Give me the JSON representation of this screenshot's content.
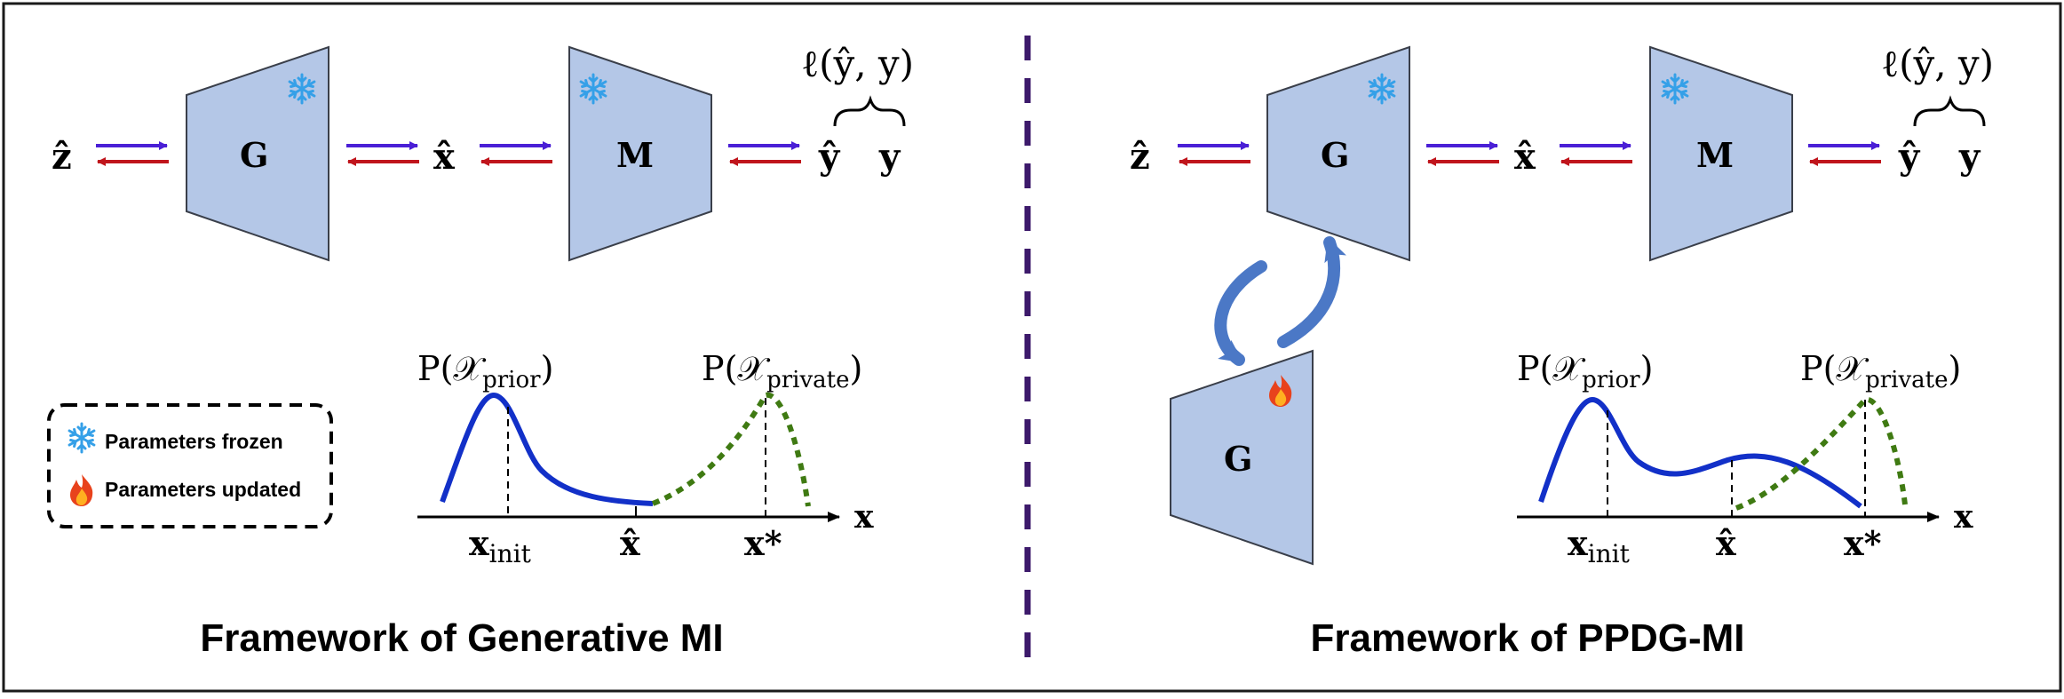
{
  "colors": {
    "block_fill": "#b4c7e7",
    "block_stroke": "#3a3f4a",
    "forward_arrow": "#4a1fd6",
    "backward_arrow": "#c0151c",
    "divider": "#3d1a6b",
    "prior_curve": "#1230c8",
    "private_curve": "#3f7a12",
    "cycle_arrow": "#4b78c6",
    "snowflake": "#35a0e8",
    "fire": "#e8421c"
  },
  "left_panel": {
    "caption": "Framework of Generative MI",
    "pipeline": {
      "z_label": "ẑ",
      "generator_label": "G",
      "x_label": "x̂",
      "model_label": "M",
      "y_hat_label": "ŷ",
      "y_label": "y",
      "loss_label": "ℓ(ŷ, y)"
    },
    "legend": {
      "frozen_icon": "snowflake-icon",
      "frozen_label": "Parameters frozen",
      "updated_icon": "fire-icon",
      "updated_label": "Parameters updated"
    },
    "plot": {
      "prior_label": "P(𝒳",
      "prior_sub": "prior",
      "private_label": "P(𝒳",
      "private_sub": "private",
      "axis_label": "x",
      "x_init": "x",
      "x_init_sub": "init",
      "x_hat": "x̂",
      "x_star": "x*"
    }
  },
  "right_panel": {
    "caption": "Framework of PPDG-MI",
    "pipeline": {
      "z_label": "ẑ",
      "generator_label": "G",
      "x_label": "x̂",
      "model_label": "M",
      "y_hat_label": "ŷ",
      "y_label": "y",
      "loss_label": "ℓ(ŷ, y)"
    },
    "updated_generator_label": "G",
    "plot": {
      "prior_label": "P(𝒳",
      "prior_sub": "prior",
      "private_label": "P(𝒳",
      "private_sub": "private",
      "axis_label": "x",
      "x_init": "x",
      "x_init_sub": "init",
      "x_hat": "x̂",
      "x_star": "x*"
    }
  }
}
